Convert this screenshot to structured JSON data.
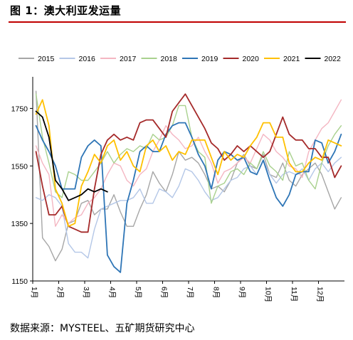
{
  "title": "图 1：澳大利亚发运量",
  "source": "数据来源：MYSTEEL、五矿期货研究中心",
  "chart_data": {
    "type": "line",
    "title": "图 1：澳大利亚发运量",
    "xlabel": "",
    "ylabel": "",
    "ylim": [
      1150,
      1850
    ],
    "y_ticks": [
      "1150",
      "1350",
      "1550",
      "1750"
    ],
    "x_ticks": [
      "1月",
      "2月",
      "3月",
      "4月",
      "5月",
      "6月",
      "7月",
      "8月",
      "9月",
      "10月",
      "11月",
      "12月"
    ],
    "x_unit": "week",
    "grid": false,
    "legend_position": "top",
    "series": [
      {
        "name": "2015",
        "color": "#a6a6a6",
        "values": [
          1810,
          1300,
          1270,
          1220,
          1260,
          1350,
          1360,
          1420,
          1430,
          1380,
          1400,
          1400,
          1450,
          1390,
          1340,
          1340,
          1400,
          1450,
          1530,
          1490,
          1460,
          1520,
          1600,
          1570,
          1580,
          1560,
          1520,
          1470,
          1480,
          1460,
          1500,
          1560,
          1590,
          1550,
          1540,
          1590,
          1520,
          1510,
          1560,
          1500,
          1480,
          1520,
          1540,
          1560,
          1520,
          1460,
          1400,
          1440
        ]
      },
      {
        "name": "2016",
        "color": "#b4c7e7",
        "values": [
          1440,
          1430,
          1450,
          1440,
          1410,
          1280,
          1250,
          1250,
          1230,
          1330,
          1400,
          1410,
          1420,
          1430,
          1430,
          1440,
          1470,
          1420,
          1420,
          1470,
          1460,
          1440,
          1480,
          1540,
          1530,
          1500,
          1460,
          1430,
          1440,
          1470,
          1500,
          1510,
          1540,
          1550,
          1520,
          1570,
          1520,
          1490,
          1520,
          1530,
          1520,
          1540,
          1500,
          1540,
          1560,
          1530,
          1560,
          1580
        ]
      },
      {
        "name": "2017",
        "color": "#f4b6c2",
        "values": [
          1620,
          1560,
          1520,
          1340,
          1380,
          1350,
          1370,
          1380,
          1420,
          1440,
          1470,
          1520,
          1560,
          1550,
          1500,
          1480,
          1520,
          1540,
          1600,
          1640,
          1690,
          1660,
          1640,
          1610,
          1620,
          1650,
          1600,
          1560,
          1490,
          1530,
          1540,
          1560,
          1580,
          1560,
          1610,
          1660,
          1640,
          1600,
          1580,
          1550,
          1540,
          1510,
          1600,
          1640,
          1680,
          1700,
          1740,
          1780
        ]
      },
      {
        "name": "2018",
        "color": "#a9d18e",
        "values": [
          1800,
          1650,
          1560,
          1460,
          1440,
          1530,
          1520,
          1500,
          1500,
          1530,
          1560,
          1600,
          1560,
          1590,
          1610,
          1600,
          1620,
          1610,
          1660,
          1640,
          1650,
          1690,
          1760,
          1760,
          1650,
          1600,
          1580,
          1420,
          1480,
          1490,
          1530,
          1540,
          1520,
          1560,
          1540,
          1600,
          1550,
          1530,
          1500,
          1600,
          1550,
          1560,
          1500,
          1470,
          1560,
          1620,
          1660,
          1690
        ]
      },
      {
        "name": "2019",
        "color": "#2e75b6",
        "values": [
          1690,
          1640,
          1600,
          1550,
          1470,
          1470,
          1470,
          1580,
          1620,
          1640,
          1620,
          1240,
          1200,
          1180,
          1420,
          1500,
          1600,
          1620,
          1600,
          1600,
          1660,
          1690,
          1700,
          1700,
          1650,
          1590,
          1550,
          1470,
          1570,
          1600,
          1590,
          1570,
          1580,
          1530,
          1520,
          1570,
          1500,
          1440,
          1410,
          1450,
          1520,
          1530,
          1530,
          1640,
          1630,
          1560,
          1600,
          1660
        ]
      },
      {
        "name": "2020",
        "color": "#a52a2a",
        "values": [
          1600,
          1480,
          1380,
          1380,
          1410,
          1340,
          1330,
          1320,
          1320,
          1470,
          1590,
          1640,
          1660,
          1640,
          1650,
          1640,
          1700,
          1710,
          1710,
          1680,
          1650,
          1740,
          1770,
          1800,
          1760,
          1720,
          1680,
          1630,
          1610,
          1570,
          1590,
          1620,
          1600,
          1620,
          1600,
          1580,
          1600,
          1660,
          1720,
          1660,
          1640,
          1640,
          1610,
          1610,
          1580,
          1580,
          1510,
          1550
        ]
      },
      {
        "name": "2021",
        "color": "#ffc000",
        "values": [
          1730,
          1780,
          1690,
          1470,
          1420,
          1340,
          1350,
          1480,
          1530,
          1590,
          1560,
          1620,
          1640,
          1570,
          1600,
          1550,
          1530,
          1620,
          1640,
          1600,
          1620,
          1570,
          1600,
          1590,
          1640,
          1640,
          1640,
          1580,
          1520,
          1600,
          1570,
          1590,
          1580,
          1620,
          1650,
          1700,
          1700,
          1650,
          1650,
          1560,
          1530,
          1530,
          1560,
          1580,
          1570,
          1640,
          1630,
          1620
        ]
      },
      {
        "name": "2022",
        "color": "#000000",
        "values": [
          1740,
          1720,
          1650,
          1500,
          1470,
          1430,
          1440,
          1450,
          1470,
          1460,
          1470,
          1460
        ]
      }
    ]
  }
}
